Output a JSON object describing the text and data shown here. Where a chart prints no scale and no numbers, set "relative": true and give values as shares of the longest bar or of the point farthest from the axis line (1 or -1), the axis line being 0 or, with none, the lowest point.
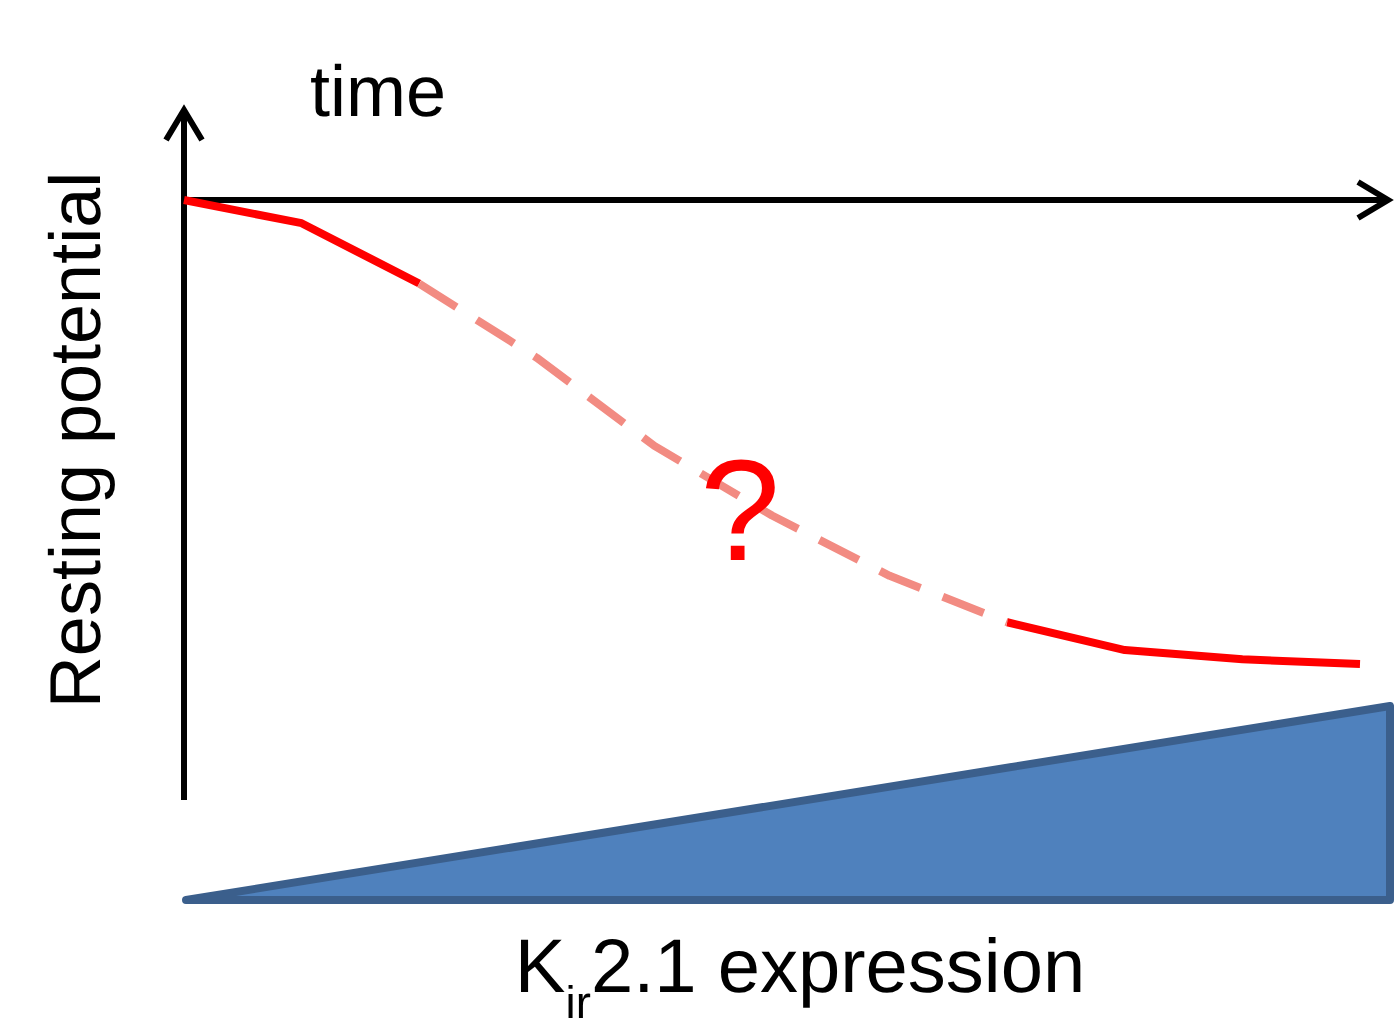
{
  "chart_data": {
    "type": "line",
    "relative": true,
    "xlabel": "time",
    "ylabel": "Resting potential",
    "categories": [
      null,
      null,
      null,
      null,
      null,
      null,
      null,
      null,
      null,
      null,
      null
    ],
    "series": [
      {
        "color": "#ff0000",
        "line_style": "solid",
        "values": [
          0,
          -0.05,
          -0.18,
          null,
          null,
          null,
          null,
          null,
          null,
          null,
          null
        ]
      },
      {
        "color": "#f28b82",
        "line_style": "dashed",
        "values": [
          null,
          null,
          -0.18,
          -0.34,
          -0.53,
          -0.68,
          -0.81,
          -0.91,
          null,
          null,
          null
        ]
      },
      {
        "color": "#ff0000",
        "line_style": "solid",
        "values": [
          null,
          null,
          null,
          null,
          null,
          null,
          null,
          -0.91,
          -0.97,
          -0.99,
          -1
        ]
      }
    ],
    "annotations": [
      "?",
      "K$_{ir}$2.1 expression"
    ]
  }
}
